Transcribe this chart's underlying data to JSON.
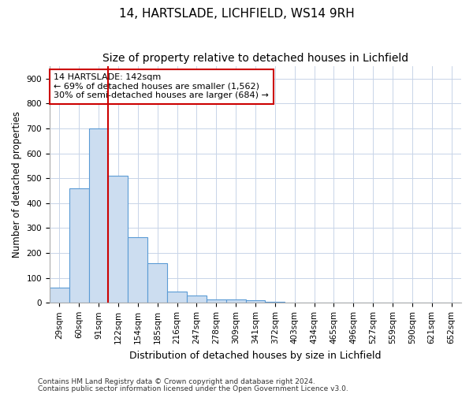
{
  "title1": "14, HARTSLADE, LICHFIELD, WS14 9RH",
  "title2": "Size of property relative to detached houses in Lichfield",
  "xlabel": "Distribution of detached houses by size in Lichfield",
  "ylabel": "Number of detached properties",
  "categories": [
    "29sqm",
    "60sqm",
    "91sqm",
    "122sqm",
    "154sqm",
    "185sqm",
    "216sqm",
    "247sqm",
    "278sqm",
    "309sqm",
    "341sqm",
    "372sqm",
    "403sqm",
    "434sqm",
    "465sqm",
    "496sqm",
    "527sqm",
    "559sqm",
    "590sqm",
    "621sqm",
    "652sqm"
  ],
  "values": [
    60,
    460,
    700,
    510,
    265,
    160,
    45,
    30,
    15,
    15,
    10,
    5,
    2,
    1,
    0,
    0,
    0,
    0,
    0,
    0,
    0
  ],
  "bar_color": "#ccddf0",
  "bar_edge_color": "#5b9bd5",
  "vline_x": 2.5,
  "vline_color": "#cc0000",
  "annotation_text": "14 HARTSLADE: 142sqm\n← 69% of detached houses are smaller (1,562)\n30% of semi-detached houses are larger (684) →",
  "annotation_box_color": "#ffffff",
  "annotation_box_edge": "#cc0000",
  "ylim": [
    0,
    950
  ],
  "yticks": [
    0,
    100,
    200,
    300,
    400,
    500,
    600,
    700,
    800,
    900
  ],
  "footer1": "Contains HM Land Registry data © Crown copyright and database right 2024.",
  "footer2": "Contains public sector information licensed under the Open Government Licence v3.0.",
  "bg_color": "#ffffff",
  "grid_color": "#c8d4e8",
  "title1_fontsize": 11,
  "title2_fontsize": 10,
  "xlabel_fontsize": 9,
  "ylabel_fontsize": 8.5,
  "tick_fontsize": 7.5,
  "annotation_fontsize": 8,
  "footer_fontsize": 6.5
}
